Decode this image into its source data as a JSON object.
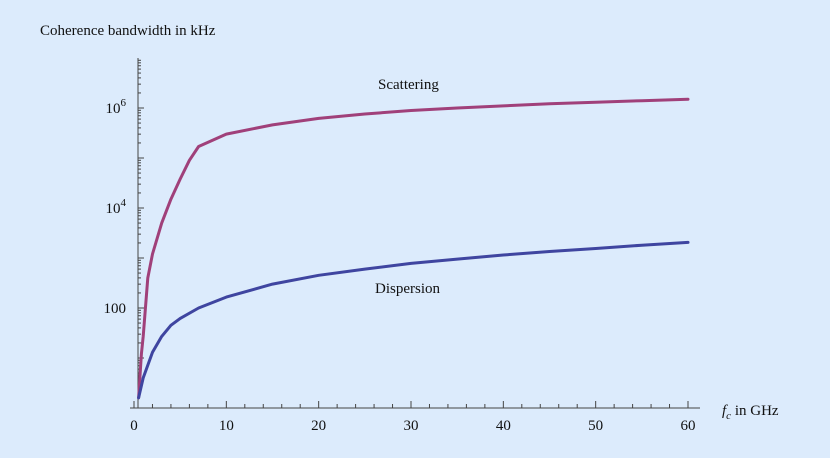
{
  "chart_data": {
    "type": "line",
    "ylabel": "Coherence bandwidth in kHz",
    "xlabel": {
      "symbol": "f",
      "subscript": "c",
      "suffix": " in GHz"
    },
    "xlim": [
      0,
      60
    ],
    "ylim_log10": [
      0,
      7
    ],
    "y_scale": "log",
    "x_ticks": [
      "0",
      "10",
      "20",
      "30",
      "40",
      "50",
      "60"
    ],
    "y_ticks": [
      {
        "value": 100,
        "label": "100",
        "base": "",
        "exp": ""
      },
      {
        "value": 10000,
        "label": "",
        "base": "10",
        "exp": "4"
      },
      {
        "value": 1000000,
        "label": "",
        "base": "10",
        "exp": "6"
      }
    ],
    "series": [
      {
        "name": "Scattering",
        "color": "#a0407a",
        "points": [
          [
            0.5,
            1.6
          ],
          [
            0.8,
            12
          ],
          [
            1,
            27
          ],
          [
            1.5,
            400
          ],
          [
            2,
            1200
          ],
          [
            3,
            5000
          ],
          [
            4,
            15000
          ],
          [
            5,
            38000
          ],
          [
            6,
            90000
          ],
          [
            7,
            170000
          ],
          [
            10,
            300000
          ],
          [
            15,
            460000
          ],
          [
            20,
            620000
          ],
          [
            25,
            760000
          ],
          [
            30,
            890000
          ],
          [
            35,
            1000000
          ],
          [
            40,
            1100000
          ],
          [
            45,
            1220000
          ],
          [
            50,
            1300000
          ],
          [
            55,
            1400000
          ],
          [
            60,
            1500000
          ]
        ]
      },
      {
        "name": "Dispersion",
        "color": "#3f45a0",
        "points": [
          [
            0.5,
            1.6
          ],
          [
            1,
            4
          ],
          [
            2,
            13
          ],
          [
            3,
            27
          ],
          [
            4,
            45
          ],
          [
            5,
            62
          ],
          [
            7,
            100
          ],
          [
            10,
            165
          ],
          [
            15,
            300
          ],
          [
            20,
            450
          ],
          [
            25,
            600
          ],
          [
            30,
            780
          ],
          [
            35,
            950
          ],
          [
            40,
            1150
          ],
          [
            45,
            1350
          ],
          [
            50,
            1550
          ],
          [
            55,
            1800
          ],
          [
            60,
            2050
          ]
        ]
      }
    ],
    "annotations": [
      {
        "text": "Scattering",
        "series": "Scattering"
      },
      {
        "text": "Dispersion",
        "series": "Dispersion"
      }
    ]
  }
}
